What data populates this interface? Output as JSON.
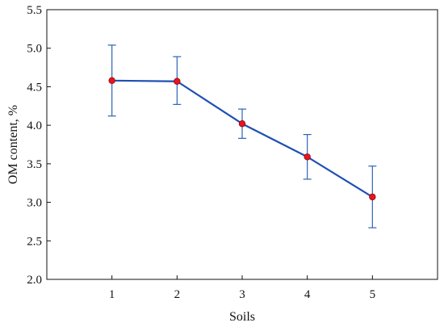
{
  "chart_data": {
    "type": "line",
    "title": "",
    "xlabel": "Soils",
    "ylabel": "OM content, %",
    "x": [
      1,
      2,
      3,
      4,
      5
    ],
    "xlim": [
      0,
      6
    ],
    "ylim": [
      2.0,
      5.5
    ],
    "x_ticks": [
      1,
      2,
      3,
      4,
      5
    ],
    "y_ticks": [
      "2.0",
      "2.5",
      "3.0",
      "3.5",
      "4.0",
      "4.5",
      "5.0",
      "5.5"
    ],
    "grid": false,
    "legend": "none",
    "series": [
      {
        "values": [
          4.58,
          4.57,
          4.02,
          3.59,
          3.07
        ],
        "error_lower": [
          4.12,
          4.27,
          3.83,
          3.3,
          2.67
        ],
        "error_upper": [
          5.04,
          4.89,
          4.21,
          3.88,
          3.47
        ],
        "line_color": "#1f4fb4",
        "marker_color": "#e8141e",
        "errorbar_color": "#2e62b8"
      }
    ]
  }
}
